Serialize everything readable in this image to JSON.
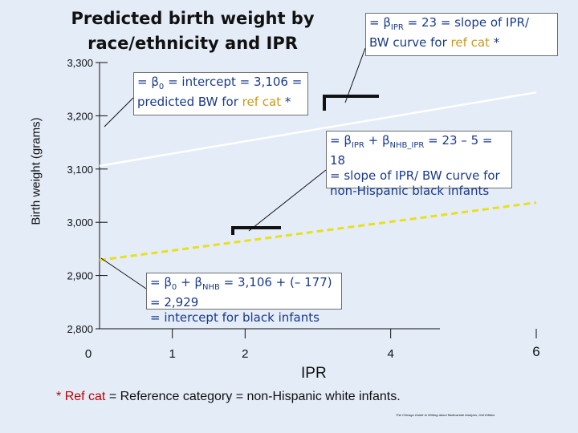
{
  "title": "Predicted birth weight by race/ethnicity and IPR",
  "chart_data": {
    "type": "line",
    "title": "Predicted birth weight by race/ethnicity and IPR",
    "xlabel": "IPR",
    "ylabel": "Birth weight (grams)",
    "xlim": [
      0,
      6
    ],
    "ylim": [
      2800,
      3300
    ],
    "y_ticks": [
      3300,
      3200,
      3100,
      3000,
      2900,
      2800
    ],
    "y_tick_labels": [
      "3,300",
      "3,200",
      "3,100",
      "3,000",
      "2,900",
      "2,800"
    ],
    "x_ticks": [
      0,
      1,
      2,
      4,
      6
    ],
    "x_tick_labels": [
      "0",
      "1",
      "2",
      "4",
      "6"
    ],
    "series": [
      {
        "color": "#ffffff",
        "style": "solid",
        "x": [
          0,
          6
        ],
        "y": [
          3106,
          3244
        ]
      },
      {
        "color": "#e8e01a",
        "style": "dashed",
        "x": [
          0,
          6
        ],
        "y": [
          2929,
          3037
        ]
      }
    ],
    "grid": false
  },
  "callouts": {
    "slope_ref": {
      "line1_pre": "= β",
      "line1_sub": "IPR",
      "line1_post": " = 23 = slope of IPR/",
      "line2_pre": "BW curve for ",
      "line2_ref": "ref cat",
      "line2_post": " *"
    },
    "intercept_ref": {
      "line1_pre": "= β",
      "line1_sub": "0",
      "line1_post": " = intercept = 3,106 =",
      "line2_pre": "predicted BW for ",
      "line2_ref": "ref cat",
      "line2_post": " *"
    },
    "slope_nhb": {
      "line1_a": "= β",
      "line1_sub1": "IPR",
      "line1_b": " + β",
      "line1_sub2": "NHB_IPR",
      "line1_c": " = 23 – 5 = 18",
      "line2": "= slope of IPR/ BW curve for",
      "line3": "non-Hispanic black infants"
    },
    "intercept_nhb": {
      "line1_a": "= β",
      "line1_sub1": "0",
      "line1_b": " + β",
      "line1_sub2": "NHB",
      "line1_c": " = 3,106 + (– 177) = 2,929",
      "line2": "= intercept for black infants"
    }
  },
  "footnote": {
    "star": "*",
    "ref": "Ref cat",
    "rest": " = Reference category = non-Hispanic white infants."
  },
  "credit": "The Chicago Guide to Writing about Multivariate Analysis, 2nd Edition",
  "colors": {
    "background": "#e4ecf7",
    "ref_line": "#ffffff",
    "nhb_line": "#e8e01a",
    "callout_text": "#1a3a8a",
    "ref_highlight": "#c79a1f"
  }
}
